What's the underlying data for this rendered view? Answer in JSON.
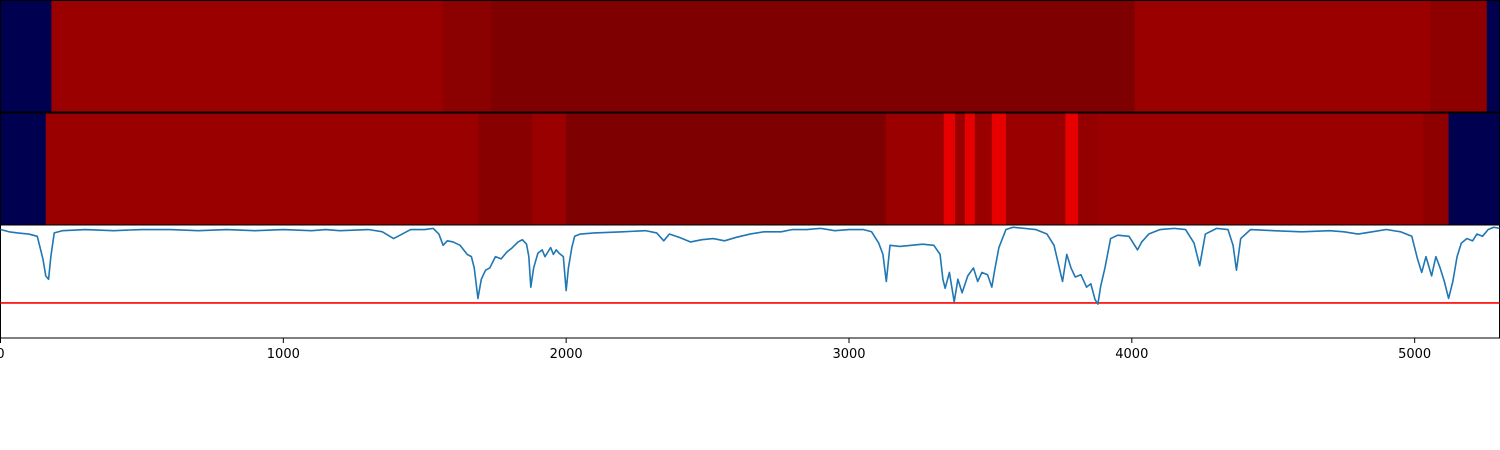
{
  "chart_data": [
    {
      "type": "heatmap",
      "panel": "top",
      "colormap": "seismic",
      "segments": [
        {
          "x0": 0,
          "x1": 180,
          "color": "#000050"
        },
        {
          "x0": 180,
          "x1": 1565,
          "color": "#9a0000"
        },
        {
          "x0": 1565,
          "x1": 1735,
          "color": "#8b0000"
        },
        {
          "x0": 1735,
          "x1": 4010,
          "color": "#7f0000"
        },
        {
          "x0": 4010,
          "x1": 5055,
          "color": "#9a0000"
        },
        {
          "x0": 5055,
          "x1": 5255,
          "color": "#8e0000"
        },
        {
          "x0": 5255,
          "x1": 5300,
          "color": "#000050"
        }
      ]
    },
    {
      "type": "heatmap",
      "panel": "middle",
      "colormap": "seismic",
      "segments": [
        {
          "x0": 0,
          "x1": 160,
          "color": "#000050"
        },
        {
          "x0": 160,
          "x1": 1690,
          "color": "#9a0000"
        },
        {
          "x0": 1690,
          "x1": 1880,
          "color": "#880000"
        },
        {
          "x0": 1880,
          "x1": 2000,
          "color": "#9a0000"
        },
        {
          "x0": 2000,
          "x1": 3130,
          "color": "#7f0000"
        },
        {
          "x0": 3130,
          "x1": 3335,
          "color": "#9a0000"
        },
        {
          "x0": 3335,
          "x1": 3375,
          "color": "#e60000"
        },
        {
          "x0": 3375,
          "x1": 3410,
          "color": "#9a0000"
        },
        {
          "x0": 3410,
          "x1": 3445,
          "color": "#e60000"
        },
        {
          "x0": 3445,
          "x1": 3505,
          "color": "#9a0000"
        },
        {
          "x0": 3505,
          "x1": 3555,
          "color": "#e60000"
        },
        {
          "x0": 3555,
          "x1": 3765,
          "color": "#9a0000"
        },
        {
          "x0": 3765,
          "x1": 3810,
          "color": "#e60000"
        },
        {
          "x0": 3810,
          "x1": 3880,
          "color": "#940000"
        },
        {
          "x0": 3880,
          "x1": 5030,
          "color": "#9a0000"
        },
        {
          "x0": 5030,
          "x1": 5120,
          "color": "#8e0000"
        },
        {
          "x0": 5120,
          "x1": 5300,
          "color": "#000050"
        }
      ]
    },
    {
      "type": "line",
      "panel": "bottom",
      "xlim": [
        0,
        5300
      ],
      "ylim": [
        0,
        1.0
      ],
      "grid": false,
      "xticks": [
        0,
        1000,
        2000,
        3000,
        4000,
        5000
      ],
      "xtick_labels": [
        "0",
        "1000",
        "2000",
        "3000",
        "4000",
        "5000"
      ],
      "threshold": {
        "y": 0.31,
        "color": "#ff0000"
      },
      "series": [
        {
          "color": "#1f77b4",
          "points": [
            [
              0,
              0.96
            ],
            [
              30,
              0.94
            ],
            [
              60,
              0.93
            ],
            [
              100,
              0.92
            ],
            [
              130,
              0.9
            ],
            [
              150,
              0.7
            ],
            [
              160,
              0.55
            ],
            [
              170,
              0.52
            ],
            [
              178,
              0.72
            ],
            [
              190,
              0.93
            ],
            [
              220,
              0.95
            ],
            [
              300,
              0.96
            ],
            [
              400,
              0.95
            ],
            [
              500,
              0.96
            ],
            [
              600,
              0.96
            ],
            [
              700,
              0.95
            ],
            [
              800,
              0.96
            ],
            [
              900,
              0.95
            ],
            [
              1000,
              0.96
            ],
            [
              1100,
              0.95
            ],
            [
              1150,
              0.96
            ],
            [
              1200,
              0.95
            ],
            [
              1300,
              0.96
            ],
            [
              1350,
              0.94
            ],
            [
              1390,
              0.88
            ],
            [
              1420,
              0.92
            ],
            [
              1450,
              0.96
            ],
            [
              1500,
              0.96
            ],
            [
              1530,
              0.97
            ],
            [
              1550,
              0.92
            ],
            [
              1565,
              0.82
            ],
            [
              1580,
              0.86
            ],
            [
              1600,
              0.85
            ],
            [
              1625,
              0.82
            ],
            [
              1650,
              0.74
            ],
            [
              1665,
              0.72
            ],
            [
              1675,
              0.62
            ],
            [
              1688,
              0.35
            ],
            [
              1700,
              0.52
            ],
            [
              1715,
              0.6
            ],
            [
              1730,
              0.62
            ],
            [
              1750,
              0.72
            ],
            [
              1770,
              0.7
            ],
            [
              1790,
              0.76
            ],
            [
              1810,
              0.8
            ],
            [
              1830,
              0.85
            ],
            [
              1845,
              0.87
            ],
            [
              1860,
              0.83
            ],
            [
              1868,
              0.72
            ],
            [
              1875,
              0.45
            ],
            [
              1885,
              0.62
            ],
            [
              1900,
              0.75
            ],
            [
              1915,
              0.78
            ],
            [
              1925,
              0.72
            ],
            [
              1935,
              0.76
            ],
            [
              1945,
              0.8
            ],
            [
              1955,
              0.74
            ],
            [
              1965,
              0.78
            ],
            [
              1975,
              0.75
            ],
            [
              1990,
              0.72
            ],
            [
              2000,
              0.42
            ],
            [
              2008,
              0.62
            ],
            [
              2020,
              0.8
            ],
            [
              2030,
              0.9
            ],
            [
              2050,
              0.92
            ],
            [
              2100,
              0.93
            ],
            [
              2200,
              0.94
            ],
            [
              2280,
              0.95
            ],
            [
              2320,
              0.93
            ],
            [
              2345,
              0.86
            ],
            [
              2365,
              0.92
            ],
            [
              2400,
              0.89
            ],
            [
              2440,
              0.85
            ],
            [
              2480,
              0.87
            ],
            [
              2520,
              0.88
            ],
            [
              2560,
              0.86
            ],
            [
              2600,
              0.89
            ],
            [
              2650,
              0.92
            ],
            [
              2700,
              0.94
            ],
            [
              2760,
              0.94
            ],
            [
              2800,
              0.96
            ],
            [
              2850,
              0.96
            ],
            [
              2900,
              0.97
            ],
            [
              2950,
              0.95
            ],
            [
              3000,
              0.96
            ],
            [
              3050,
              0.96
            ],
            [
              3080,
              0.94
            ],
            [
              3105,
              0.84
            ],
            [
              3120,
              0.74
            ],
            [
              3132,
              0.5
            ],
            [
              3145,
              0.82
            ],
            [
              3180,
              0.81
            ],
            [
              3220,
              0.82
            ],
            [
              3260,
              0.83
            ],
            [
              3300,
              0.82
            ],
            [
              3322,
              0.74
            ],
            [
              3332,
              0.52
            ],
            [
              3340,
              0.44
            ],
            [
              3355,
              0.58
            ],
            [
              3372,
              0.32
            ],
            [
              3385,
              0.52
            ],
            [
              3400,
              0.4
            ],
            [
              3420,
              0.55
            ],
            [
              3440,
              0.62
            ],
            [
              3455,
              0.5
            ],
            [
              3470,
              0.58
            ],
            [
              3490,
              0.56
            ],
            [
              3505,
              0.45
            ],
            [
              3515,
              0.6
            ],
            [
              3530,
              0.8
            ],
            [
              3555,
              0.96
            ],
            [
              3580,
              0.98
            ],
            [
              3620,
              0.97
            ],
            [
              3660,
              0.96
            ],
            [
              3700,
              0.92
            ],
            [
              3725,
              0.82
            ],
            [
              3740,
              0.66
            ],
            [
              3755,
              0.5
            ],
            [
              3770,
              0.74
            ],
            [
              3785,
              0.62
            ],
            [
              3800,
              0.54
            ],
            [
              3820,
              0.56
            ],
            [
              3840,
              0.45
            ],
            [
              3855,
              0.48
            ],
            [
              3870,
              0.34
            ],
            [
              3880,
              0.3
            ],
            [
              3890,
              0.46
            ],
            [
              3905,
              0.62
            ],
            [
              3925,
              0.88
            ],
            [
              3950,
              0.91
            ],
            [
              3990,
              0.9
            ],
            [
              4020,
              0.78
            ],
            [
              4035,
              0.85
            ],
            [
              4060,
              0.92
            ],
            [
              4100,
              0.96
            ],
            [
              4150,
              0.97
            ],
            [
              4190,
              0.96
            ],
            [
              4220,
              0.84
            ],
            [
              4240,
              0.64
            ],
            [
              4260,
              0.92
            ],
            [
              4300,
              0.97
            ],
            [
              4340,
              0.96
            ],
            [
              4358,
              0.82
            ],
            [
              4370,
              0.6
            ],
            [
              4385,
              0.88
            ],
            [
              4420,
              0.96
            ],
            [
              4500,
              0.95
            ],
            [
              4600,
              0.94
            ],
            [
              4700,
              0.95
            ],
            [
              4750,
              0.94
            ],
            [
              4800,
              0.92
            ],
            [
              4850,
              0.94
            ],
            [
              4900,
              0.96
            ],
            [
              4950,
              0.94
            ],
            [
              4990,
              0.9
            ],
            [
              5010,
              0.7
            ],
            [
              5025,
              0.58
            ],
            [
              5040,
              0.72
            ],
            [
              5060,
              0.55
            ],
            [
              5075,
              0.72
            ],
            [
              5090,
              0.62
            ],
            [
              5105,
              0.5
            ],
            [
              5120,
              0.35
            ],
            [
              5135,
              0.5
            ],
            [
              5150,
              0.72
            ],
            [
              5165,
              0.84
            ],
            [
              5185,
              0.88
            ],
            [
              5205,
              0.86
            ],
            [
              5220,
              0.92
            ],
            [
              5240,
              0.9
            ],
            [
              5260,
              0.96
            ],
            [
              5280,
              0.98
            ],
            [
              5300,
              0.97
            ]
          ]
        }
      ]
    }
  ]
}
